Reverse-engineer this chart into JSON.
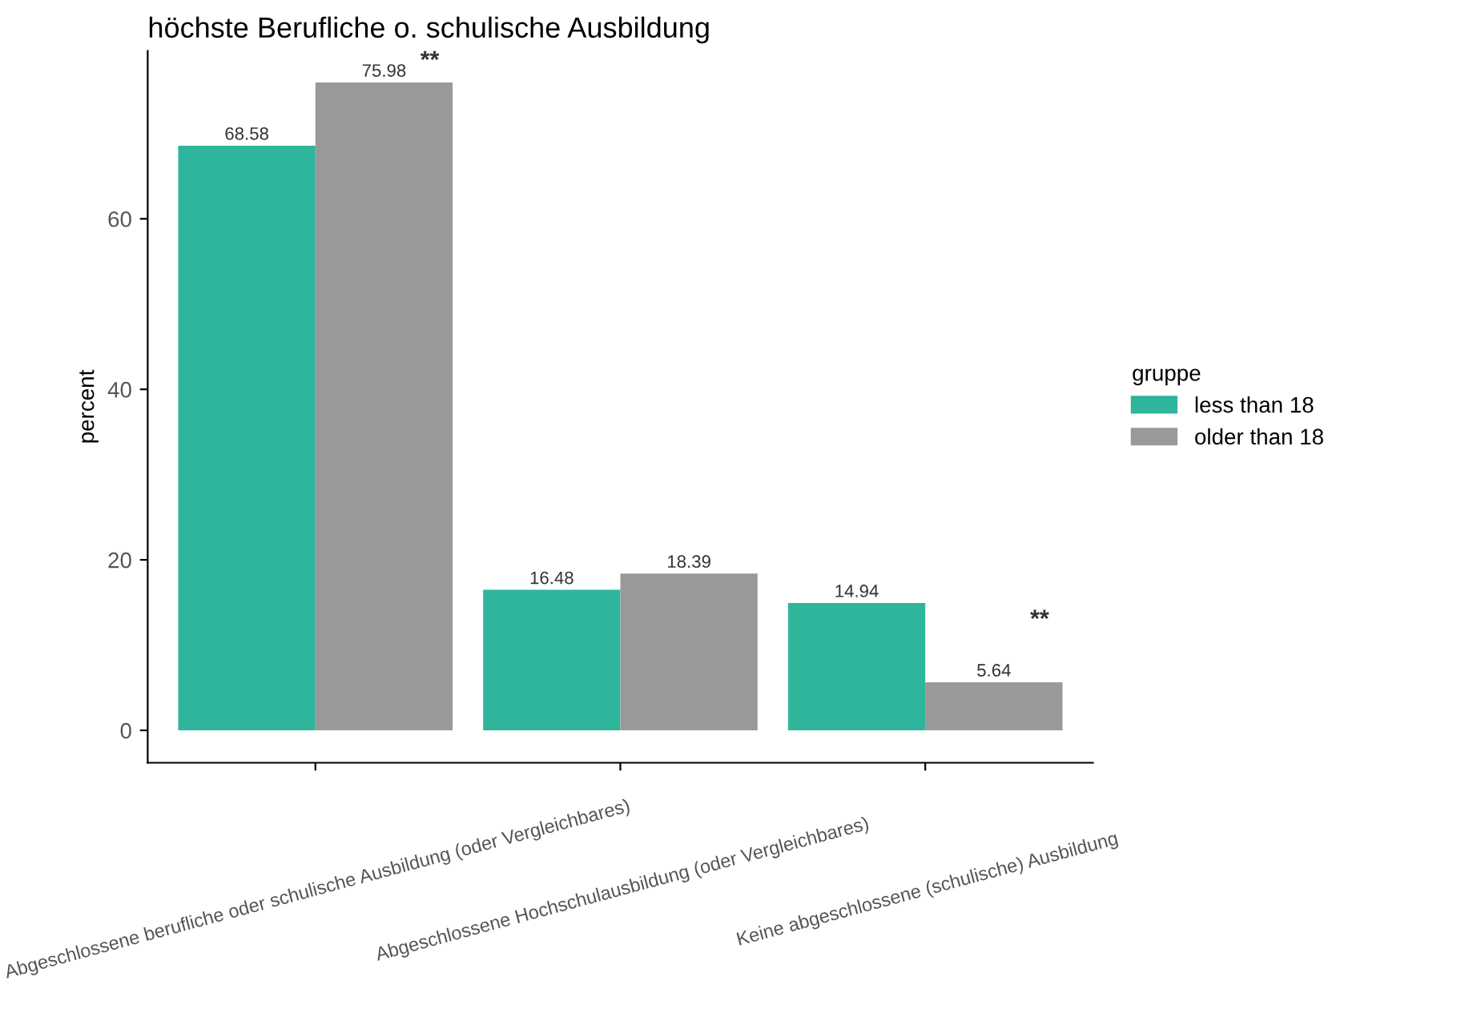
{
  "chart_data": {
    "type": "bar",
    "title": "höchste Berufliche o. schulische Ausbildung",
    "ylabel": "percent",
    "legend_title": "gruppe",
    "categories": [
      "Abgeschlossene berufliche oder schulische Ausbildung (oder Vergleichbares)",
      "Abgeschlossene Hochschulausbildung (oder Vergleichbares)",
      "Keine abgeschlossene (schulische) Ausbildung"
    ],
    "series": [
      {
        "name": "less than 18",
        "color": "#2fb59c",
        "values": [
          68.58,
          16.48,
          14.94
        ]
      },
      {
        "name": "older than 18",
        "color": "#999999",
        "values": [
          75.98,
          18.39,
          5.64
        ]
      }
    ],
    "data_labels": true,
    "ylim": [
      -3.8,
      79.7
    ],
    "yticks": [
      0,
      20,
      40,
      60
    ],
    "grid": false,
    "legend": "right",
    "annotations": [
      "**",
      "**"
    ]
  }
}
